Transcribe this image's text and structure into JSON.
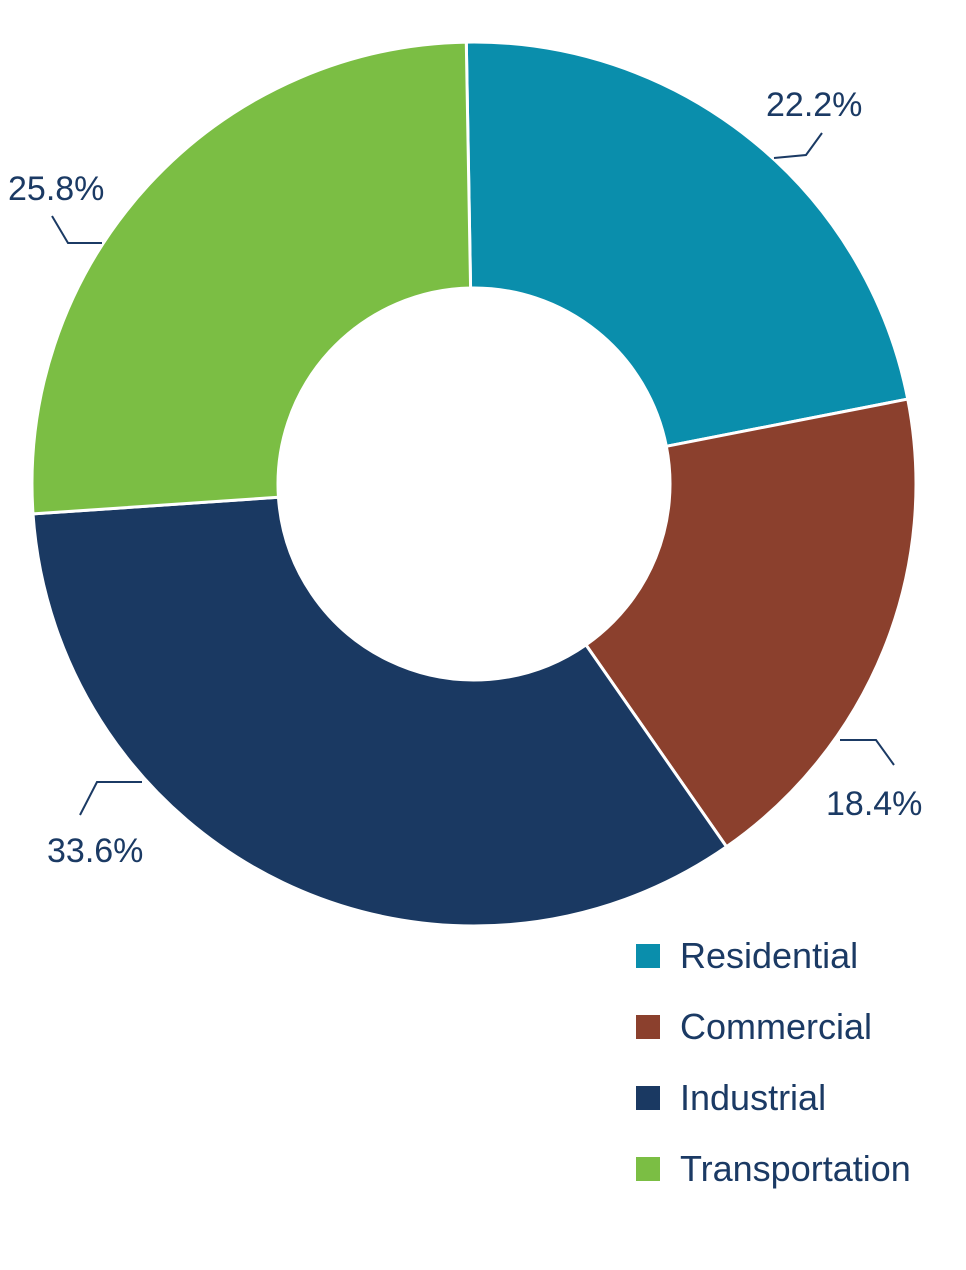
{
  "chart_data": {
    "type": "pie",
    "style": "donut",
    "title": "",
    "legend_position": "bottom-right",
    "series": [
      {
        "values": [
          {
            "category": "Residential",
            "value": 22.2,
            "label": "22.2%",
            "color": "#0a8eac"
          },
          {
            "category": "Commercial",
            "value": 18.4,
            "label": "18.4%",
            "color": "#8b402d"
          },
          {
            "category": "Industrial",
            "value": 33.6,
            "label": "33.6%",
            "color": "#1a3962"
          },
          {
            "category": "Transportation",
            "value": 25.8,
            "label": "25.8%",
            "color": "#7bbe44"
          }
        ]
      }
    ]
  },
  "legend": {
    "items": [
      {
        "label": "Residential",
        "color": "#0a8eac"
      },
      {
        "label": "Commercial",
        "color": "#8b402d"
      },
      {
        "label": "Industrial",
        "color": "#1a3962"
      },
      {
        "label": "Transportation",
        "color": "#7bbe44"
      }
    ]
  }
}
